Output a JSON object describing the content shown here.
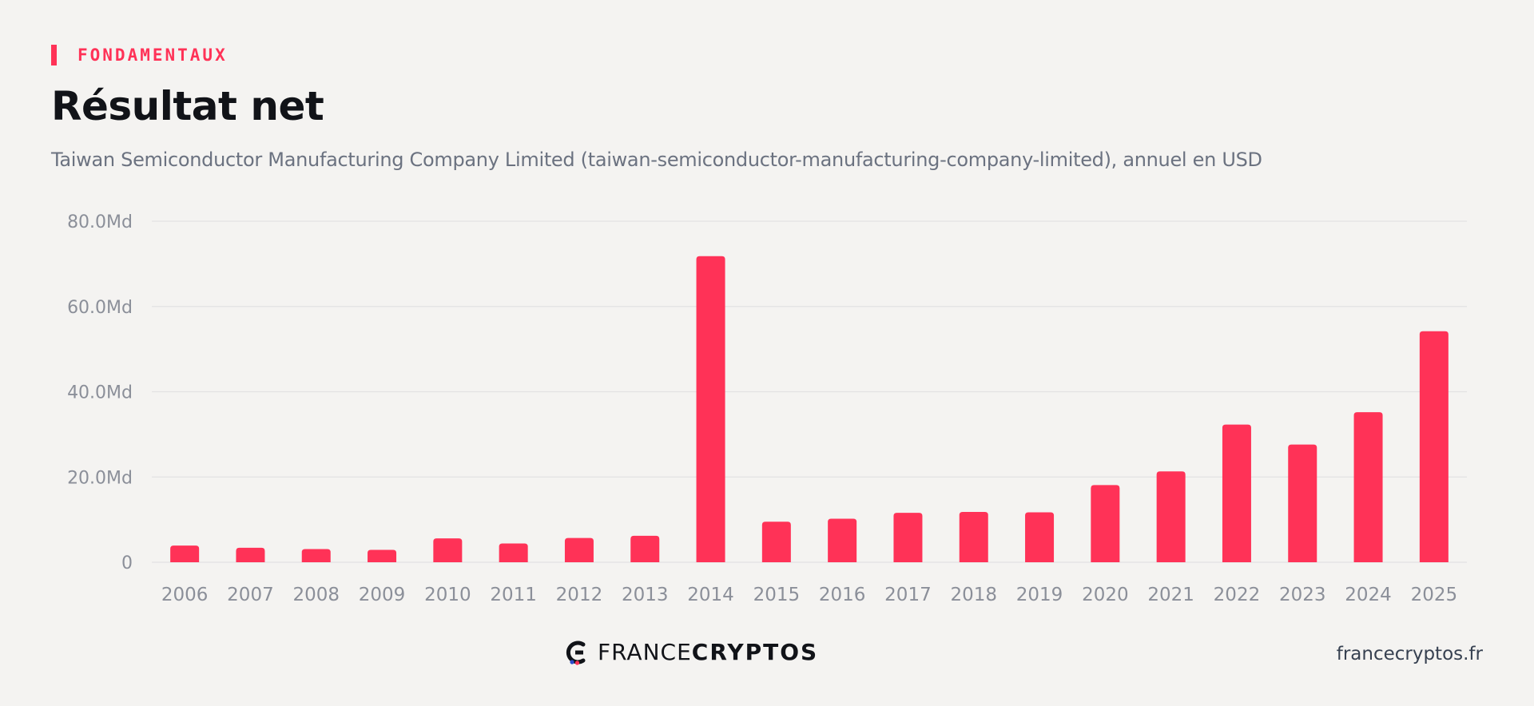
{
  "eyebrow": "FONDAMENTAUX",
  "title": "Résultat net",
  "subtitle": "Taiwan Semiconductor Manufacturing Company Limited (taiwan-semiconductor-manufacturing-company-limited), annuel en USD",
  "colors": {
    "accent": "#ff3257",
    "grid": "#e2e2e2",
    "axis_text": "#8b8f99"
  },
  "footer": {
    "logo_light": "FRANCE",
    "logo_bold": "CRYPTOS",
    "url": "francecryptos.fr",
    "logo_icon": "francecryptos-logo-icon"
  },
  "chart_data": {
    "type": "bar",
    "categories": [
      "2006",
      "2007",
      "2008",
      "2009",
      "2010",
      "2011",
      "2012",
      "2013",
      "2014",
      "2015",
      "2016",
      "2017",
      "2018",
      "2019",
      "2020",
      "2021",
      "2022",
      "2023",
      "2024",
      "2025"
    ],
    "values": [
      3.9,
      3.4,
      3.1,
      2.9,
      5.6,
      4.4,
      5.7,
      6.2,
      71.8,
      9.5,
      10.2,
      11.6,
      11.8,
      11.7,
      18.1,
      21.3,
      32.3,
      27.6,
      35.2,
      54.2
    ],
    "unit": "Md USD",
    "ylim": [
      0,
      80
    ],
    "yticks": [
      0,
      20,
      40,
      60,
      80
    ],
    "ytick_labels": [
      "0",
      "20.0Md",
      "40.0Md",
      "60.0Md",
      "80.0Md"
    ],
    "grid": true,
    "legend": "none"
  }
}
